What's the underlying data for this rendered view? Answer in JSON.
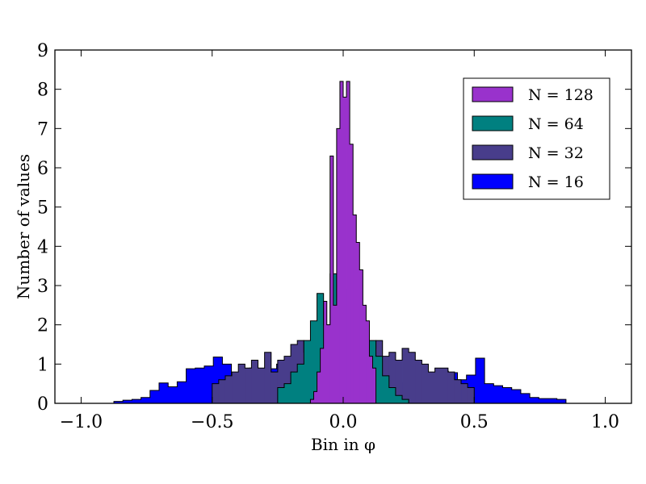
{
  "chart_data": {
    "type": "area",
    "histtype": "stepfilled-overlay",
    "title": "",
    "xlabel": "Bin in φ",
    "ylabel": "Number of values",
    "xlim": [
      -1.1,
      1.1
    ],
    "ylim": [
      0,
      9
    ],
    "xticks": [
      -1.0,
      -0.5,
      0.0,
      0.5,
      1.0
    ],
    "xtick_labels": [
      "−1.0",
      "−0.5",
      "0.0",
      "0.5",
      "1.0"
    ],
    "yticks": [
      0,
      1,
      2,
      3,
      4,
      5,
      6,
      7,
      8,
      9
    ],
    "ytick_labels": [
      "0",
      "1",
      "2",
      "3",
      "4",
      "5",
      "6",
      "7",
      "8",
      "9"
    ],
    "grid": false,
    "legend_position": "top-right",
    "series": [
      {
        "name": "N = 128",
        "color": "#9932CC",
        "edges": [
          -0.125,
          0.125
        ],
        "step": 0.0125,
        "values": [
          0.1,
          0.3,
          0.8,
          1.4,
          2.6,
          2.0,
          6.3,
          2.5,
          7.0,
          8.2,
          7.8,
          8.2,
          6.6,
          4.8,
          4.1,
          3.4,
          2.5,
          2.1,
          1.2,
          0.9
        ]
      },
      {
        "name": "N = 64",
        "color": "#008080",
        "edges": [
          -0.25,
          0.25
        ],
        "step": 0.025,
        "values": [
          0.4,
          0.5,
          0.8,
          1.0,
          1.6,
          2.1,
          2.8,
          2.0,
          3.3,
          2.4,
          2.9,
          3.2,
          1.9,
          2.0,
          1.6,
          1.2,
          0.7,
          0.4,
          0.2,
          0.1
        ]
      },
      {
        "name": "N = 32",
        "color": "#483D8B",
        "edges": [
          -0.5,
          0.5
        ],
        "step": 0.025,
        "values": [
          0.5,
          0.6,
          0.7,
          0.8,
          1.0,
          0.9,
          1.1,
          0.9,
          1.3,
          0.8,
          1.1,
          1.2,
          1.5,
          1.6,
          1.3,
          1.6,
          1.5,
          1.2,
          1.6,
          1.8,
          1.9,
          1.3,
          1.1,
          1.4,
          1.4,
          1.6,
          1.2,
          1.3,
          1.1,
          1.4,
          1.3,
          1.1,
          1.0,
          0.8,
          0.9,
          0.9,
          0.8,
          0.6,
          0.5,
          0.4
        ]
      },
      {
        "name": "N = 16",
        "color": "#0000FF",
        "edges": [
          -0.875,
          0.85
        ],
        "step": 0.0345,
        "values": [
          0.05,
          0.08,
          0.1,
          0.15,
          0.33,
          0.52,
          0.42,
          0.55,
          0.88,
          0.9,
          0.95,
          1.18,
          1.0,
          0.72,
          0.88,
          0.9,
          0.85,
          0.88,
          1.0,
          0.72,
          0.75,
          0.72,
          0.65,
          0.7,
          0.72,
          0.68,
          0.65,
          0.75,
          0.55,
          0.5,
          0.5,
          0.52,
          0.72,
          0.65,
          0.6,
          0.75,
          0.82,
          0.78,
          0.6,
          0.72,
          1.15,
          0.5,
          0.45,
          0.4,
          0.35,
          0.25,
          0.15,
          0.12,
          0.12,
          0.1
        ]
      }
    ]
  }
}
